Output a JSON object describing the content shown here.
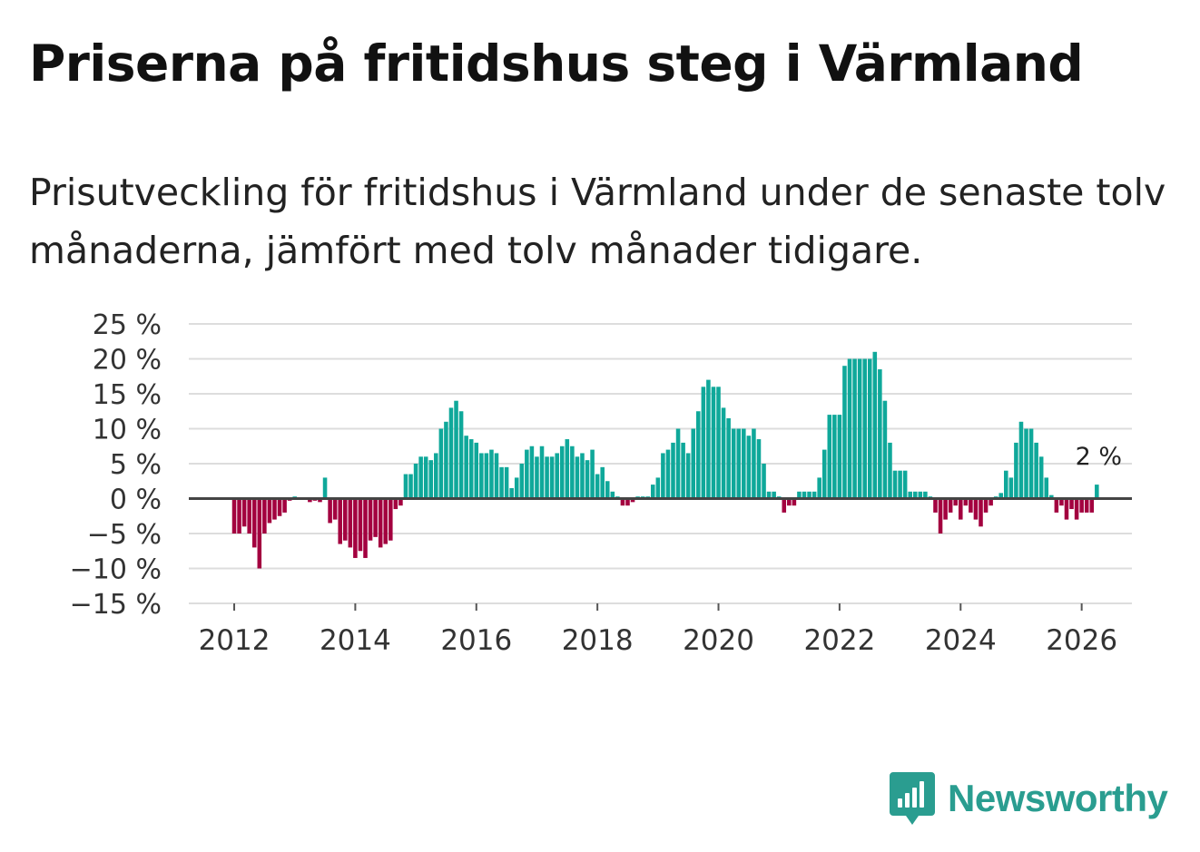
{
  "title": "Priserna på fritidshus steg i Värmland",
  "subtitle": "Prisutveckling för fritidshus i Värmland under de senaste tolv månaderna, jämfört med tolv månader tidigare.",
  "brand": "Newsworthy",
  "colors": {
    "positive": "#0fa89a",
    "negative": "#a3003f",
    "grid": "#dddddd",
    "zero_line": "#444444",
    "brand": "#2a9d90"
  },
  "chart_data": {
    "type": "bar",
    "title": "Priserna på fritidshus steg i Värmland",
    "xlabel": "",
    "ylabel": "",
    "ylim": [
      -15,
      25
    ],
    "xlim": [
      2011.25,
      2026.83
    ],
    "y_ticks": [
      25,
      20,
      15,
      10,
      5,
      0,
      -5,
      -10,
      -15
    ],
    "y_tick_labels": [
      "25 %",
      "20 %",
      "15 %",
      "10 %",
      "5 %",
      "0 %",
      "−5 %",
      "−10 %",
      "−15 %"
    ],
    "x_ticks": [
      2012,
      2014,
      2016,
      2018,
      2020,
      2022,
      2024,
      2026
    ],
    "x_tick_labels": [
      "2012",
      "2014",
      "2016",
      "2018",
      "2020",
      "2022",
      "2024",
      "2026"
    ],
    "start": "2012-01",
    "frequency": "monthly",
    "values": [
      -5,
      -5,
      -4,
      -5,
      -7,
      -10,
      -5,
      -3.5,
      -3,
      -2.5,
      -2,
      -0.3,
      0.3,
      0,
      0,
      -0.5,
      -0.3,
      -0.5,
      3,
      -3.5,
      -3,
      -6.5,
      -6,
      -7,
      -8.5,
      -7.5,
      -8.5,
      -6,
      -5.5,
      -7,
      -6.5,
      -6,
      -1.5,
      -1,
      3.5,
      3.5,
      5,
      6,
      6,
      5.5,
      6.5,
      10,
      11,
      13,
      14,
      12.5,
      9,
      8.5,
      8,
      6.5,
      6.5,
      7,
      6.5,
      4.5,
      4.5,
      1.5,
      3,
      5,
      7,
      7.5,
      6,
      7.5,
      6,
      6,
      6.5,
      7.5,
      8.5,
      7.5,
      6,
      6.5,
      5.5,
      7,
      3.5,
      4.5,
      2.5,
      1,
      0.3,
      -1,
      -1,
      -0.5,
      0.3,
      0.3,
      0.3,
      2,
      3,
      6.5,
      7,
      8,
      10,
      8,
      6.5,
      10,
      12.5,
      16,
      17,
      16,
      16,
      13,
      11.5,
      10,
      10,
      10,
      9,
      10,
      8.5,
      5,
      1,
      1,
      0.3,
      -2,
      -1,
      -1,
      1,
      1,
      1,
      1,
      3,
      7,
      12,
      12,
      12,
      19,
      20,
      20,
      20,
      20,
      20,
      21,
      18.5,
      14,
      8,
      4,
      4,
      4,
      1,
      1,
      1,
      1,
      0.3,
      -2,
      -5,
      -3,
      -2,
      -1,
      -3,
      -1,
      -2,
      -3,
      -4,
      -2,
      -1,
      0.3,
      0.8,
      4,
      3,
      8,
      11,
      10,
      10,
      8,
      6,
      3,
      0.5,
      -2,
      -1,
      -3,
      -1.5,
      -3,
      -2,
      -2,
      -2,
      2
    ],
    "last_value_label": "2 %"
  }
}
